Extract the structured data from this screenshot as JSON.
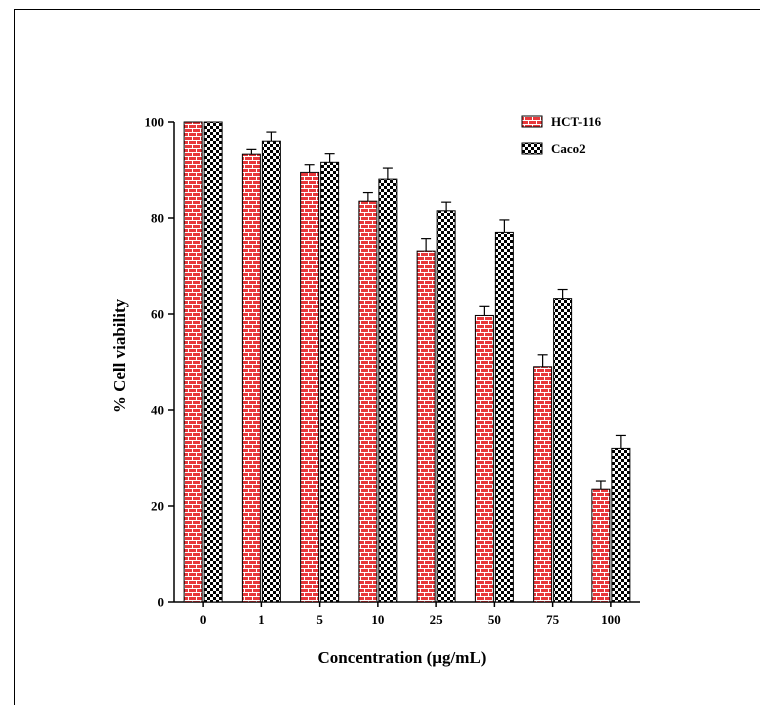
{
  "chart_data": {
    "type": "bar",
    "title": "",
    "xlabel": "Concentration (µg/mL)",
    "ylabel": "% Cell viability",
    "categories": [
      "0",
      "1",
      "5",
      "10",
      "25",
      "50",
      "75",
      "100"
    ],
    "ylim": [
      0,
      100
    ],
    "yticks": [
      0,
      20,
      40,
      60,
      80,
      100
    ],
    "legend_position": "top-right",
    "series": [
      {
        "name": "HCT-116",
        "color": "#e8373a",
        "pattern": "brick",
        "values": [
          100,
          93.3,
          89.5,
          83.5,
          73.1,
          59.7,
          49.0,
          23.5
        ],
        "errors": [
          0,
          1.0,
          1.6,
          1.8,
          2.6,
          1.9,
          2.5,
          1.7
        ]
      },
      {
        "name": "Caco2",
        "color": "#000000",
        "pattern": "checkerboard",
        "values": [
          100,
          96.0,
          91.6,
          88.1,
          81.5,
          77.0,
          63.2,
          32.0
        ],
        "errors": [
          0,
          1.9,
          1.8,
          2.3,
          1.8,
          2.6,
          1.9,
          2.7
        ]
      }
    ]
  }
}
